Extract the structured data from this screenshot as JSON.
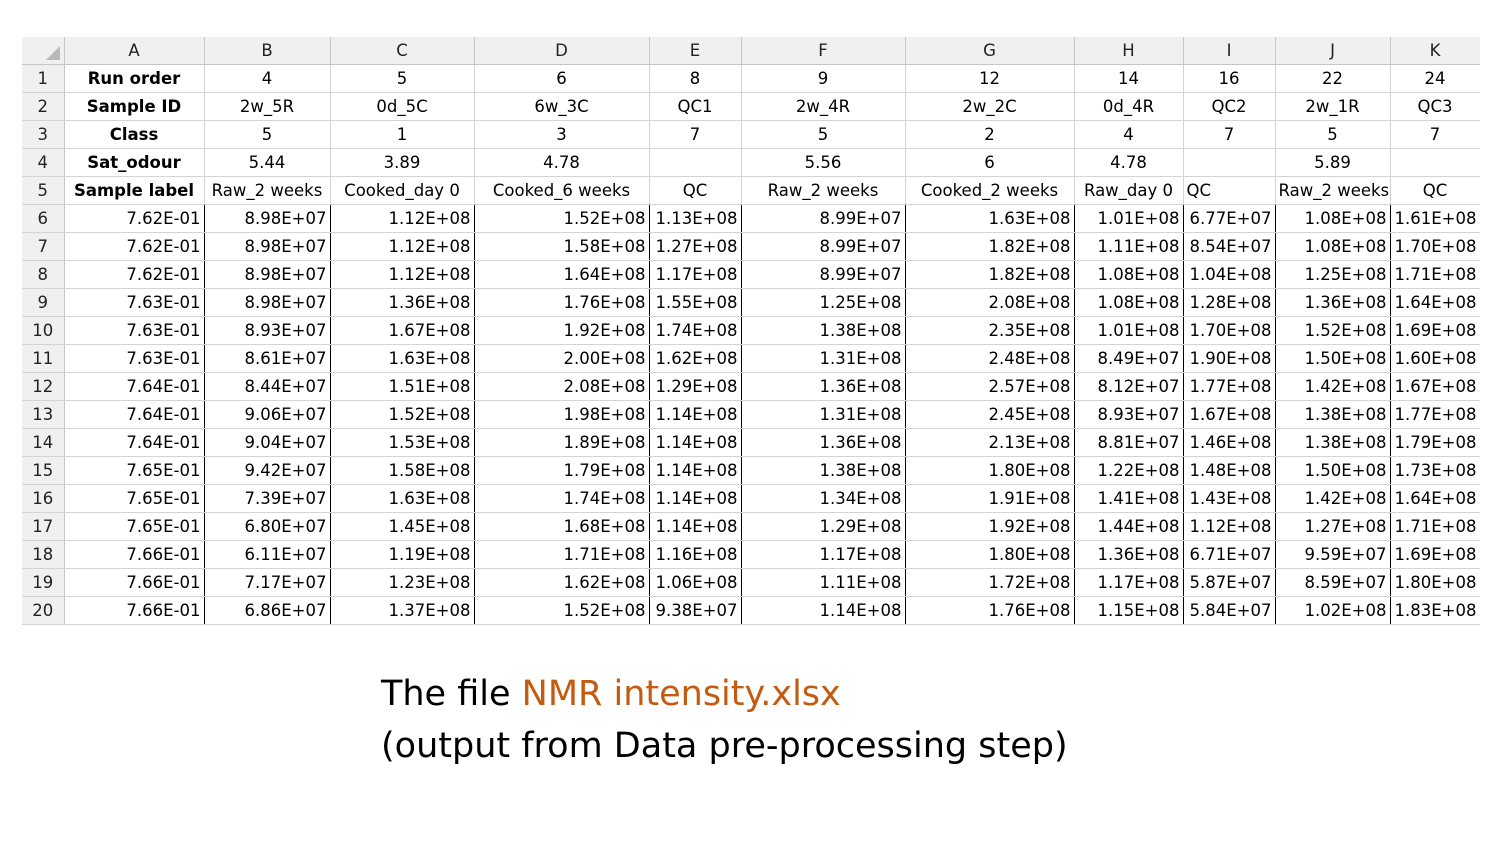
{
  "columns": [
    "A",
    "B",
    "C",
    "D",
    "E",
    "F",
    "G",
    "H",
    "I",
    "J",
    "K"
  ],
  "meta_rows": [
    {
      "row": "1",
      "label": "Run order",
      "values": [
        "4",
        "5",
        "6",
        "8",
        "9",
        "12",
        "14",
        "16",
        "22",
        "24"
      ]
    },
    {
      "row": "2",
      "label": "Sample ID",
      "values": [
        "2w_5R",
        "0d_5C",
        "6w_3C",
        "QC1",
        "2w_4R",
        "2w_2C",
        "0d_4R",
        "QC2",
        "2w_1R",
        "QC3"
      ]
    },
    {
      "row": "3",
      "label": "Class",
      "values": [
        "5",
        "1",
        "3",
        "7",
        "5",
        "2",
        "4",
        "7",
        "5",
        "7"
      ]
    },
    {
      "row": "4",
      "label": "Sat_odour",
      "values": [
        "5.44",
        "3.89",
        "4.78",
        "",
        "5.56",
        "6",
        "4.78",
        "",
        "5.89",
        ""
      ]
    },
    {
      "row": "5",
      "label": "Sample label",
      "values": [
        "Raw_2 weeks",
        "Cooked_day 0",
        "Cooked_6 weeks",
        "QC",
        "Raw_2 weeks",
        "Cooked_2 weeks",
        "Raw_day 0",
        "QC",
        "Raw_2 weeks",
        "QC"
      ]
    }
  ],
  "data_rows": [
    {
      "row": "6",
      "cells": [
        "7.62E-01",
        "8.98E+07",
        "1.12E+08",
        "1.52E+08",
        "1.13E+08",
        "8.99E+07",
        "1.63E+08",
        "1.01E+08",
        "6.77E+07",
        "1.08E+08",
        "1.61E+08"
      ]
    },
    {
      "row": "7",
      "cells": [
        "7.62E-01",
        "8.98E+07",
        "1.12E+08",
        "1.58E+08",
        "1.27E+08",
        "8.99E+07",
        "1.82E+08",
        "1.11E+08",
        "8.54E+07",
        "1.08E+08",
        "1.70E+08"
      ]
    },
    {
      "row": "8",
      "cells": [
        "7.62E-01",
        "8.98E+07",
        "1.12E+08",
        "1.64E+08",
        "1.17E+08",
        "8.99E+07",
        "1.82E+08",
        "1.08E+08",
        "1.04E+08",
        "1.25E+08",
        "1.71E+08"
      ]
    },
    {
      "row": "9",
      "cells": [
        "7.63E-01",
        "8.98E+07",
        "1.36E+08",
        "1.76E+08",
        "1.55E+08",
        "1.25E+08",
        "2.08E+08",
        "1.08E+08",
        "1.28E+08",
        "1.36E+08",
        "1.64E+08"
      ]
    },
    {
      "row": "10",
      "cells": [
        "7.63E-01",
        "8.93E+07",
        "1.67E+08",
        "1.92E+08",
        "1.74E+08",
        "1.38E+08",
        "2.35E+08",
        "1.01E+08",
        "1.70E+08",
        "1.52E+08",
        "1.69E+08"
      ]
    },
    {
      "row": "11",
      "cells": [
        "7.63E-01",
        "8.61E+07",
        "1.63E+08",
        "2.00E+08",
        "1.62E+08",
        "1.31E+08",
        "2.48E+08",
        "8.49E+07",
        "1.90E+08",
        "1.50E+08",
        "1.60E+08"
      ]
    },
    {
      "row": "12",
      "cells": [
        "7.64E-01",
        "8.44E+07",
        "1.51E+08",
        "2.08E+08",
        "1.29E+08",
        "1.36E+08",
        "2.57E+08",
        "8.12E+07",
        "1.77E+08",
        "1.42E+08",
        "1.67E+08"
      ]
    },
    {
      "row": "13",
      "cells": [
        "7.64E-01",
        "9.06E+07",
        "1.52E+08",
        "1.98E+08",
        "1.14E+08",
        "1.31E+08",
        "2.45E+08",
        "8.93E+07",
        "1.67E+08",
        "1.38E+08",
        "1.77E+08"
      ]
    },
    {
      "row": "14",
      "cells": [
        "7.64E-01",
        "9.04E+07",
        "1.53E+08",
        "1.89E+08",
        "1.14E+08",
        "1.36E+08",
        "2.13E+08",
        "8.81E+07",
        "1.46E+08",
        "1.38E+08",
        "1.79E+08"
      ]
    },
    {
      "row": "15",
      "cells": [
        "7.65E-01",
        "9.42E+07",
        "1.58E+08",
        "1.79E+08",
        "1.14E+08",
        "1.38E+08",
        "1.80E+08",
        "1.22E+08",
        "1.48E+08",
        "1.50E+08",
        "1.73E+08"
      ]
    },
    {
      "row": "16",
      "cells": [
        "7.65E-01",
        "7.39E+07",
        "1.63E+08",
        "1.74E+08",
        "1.14E+08",
        "1.34E+08",
        "1.91E+08",
        "1.41E+08",
        "1.43E+08",
        "1.42E+08",
        "1.64E+08"
      ]
    },
    {
      "row": "17",
      "cells": [
        "7.65E-01",
        "6.80E+07",
        "1.45E+08",
        "1.68E+08",
        "1.14E+08",
        "1.29E+08",
        "1.92E+08",
        "1.44E+08",
        "1.12E+08",
        "1.27E+08",
        "1.71E+08"
      ]
    },
    {
      "row": "18",
      "cells": [
        "7.66E-01",
        "6.11E+07",
        "1.19E+08",
        "1.71E+08",
        "1.16E+08",
        "1.17E+08",
        "1.80E+08",
        "1.36E+08",
        "6.71E+07",
        "9.59E+07",
        "1.69E+08"
      ]
    },
    {
      "row": "19",
      "cells": [
        "7.66E-01",
        "7.17E+07",
        "1.23E+08",
        "1.62E+08",
        "1.06E+08",
        "1.11E+08",
        "1.72E+08",
        "1.17E+08",
        "5.87E+07",
        "8.59E+07",
        "1.80E+08"
      ]
    },
    {
      "row": "20",
      "cells": [
        "7.66E-01",
        "6.86E+07",
        "1.37E+08",
        "1.52E+08",
        "9.38E+07",
        "1.14E+08",
        "1.76E+08",
        "1.15E+08",
        "5.84E+07",
        "1.02E+08",
        "1.83E+08"
      ]
    }
  ],
  "caption": {
    "prefix": "The file ",
    "filename": "NMR intensity.xlsx",
    "line2": "(output from Data pre-processing step)",
    "accent_color": "#c55a11"
  }
}
